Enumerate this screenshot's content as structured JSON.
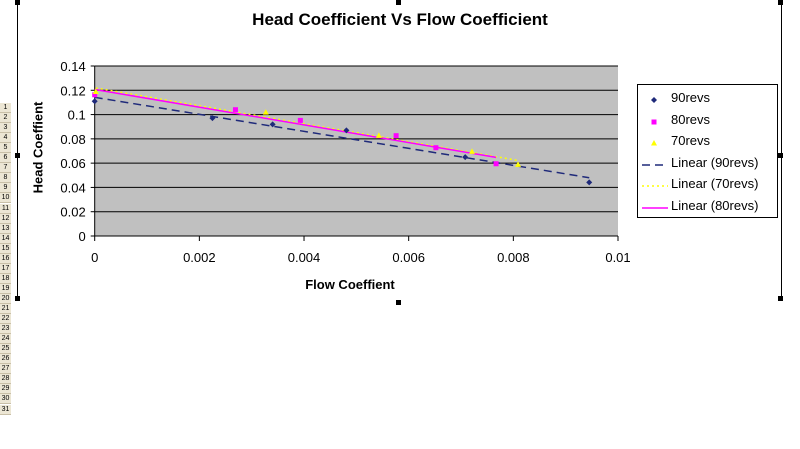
{
  "chart_data": {
    "type": "scatter",
    "title": "Head Coefficient Vs Flow Coefficient",
    "xlabel": "Flow Coeffient",
    "ylabel": "Head Coeffient",
    "xlim": [
      0,
      0.01
    ],
    "ylim": [
      0,
      0.14
    ],
    "xticks": [
      "0",
      "0.002",
      "0.004",
      "0.006",
      "0.008",
      "0.01"
    ],
    "yticks": [
      "0",
      "0.02",
      "0.04",
      "0.06",
      "0.08",
      "0.1",
      "0.12",
      "0.14"
    ],
    "grid": true,
    "legend_position": "right",
    "series": [
      {
        "name": "90revs",
        "color": "#1f2a7a",
        "marker": "diamond",
        "x": [
          0,
          0.00225,
          0.0034,
          0.00481,
          0.00708,
          0.00945
        ],
        "y": [
          0.111,
          0.0971,
          0.0919,
          0.087,
          0.065,
          0.0442
        ]
      },
      {
        "name": "80revs",
        "color": "#ff00ff",
        "marker": "square",
        "x": [
          0,
          0.00269,
          0.00393,
          0.00576,
          0.00652,
          0.00767
        ],
        "y": [
          0.1163,
          0.104,
          0.0952,
          0.0826,
          0.0727,
          0.0595
        ]
      },
      {
        "name": "70revs",
        "color": "#ffff00",
        "marker": "triangle",
        "x": [
          2e-05,
          0.00327,
          0.00543,
          0.00721,
          0.00809
        ],
        "y": [
          0.119,
          0.102,
          0.0829,
          0.0697,
          0.059
        ]
      }
    ],
    "trendlines": [
      {
        "name": "Linear (90revs)",
        "series": 0,
        "color": "#1f2a7a",
        "dash": "8,5"
      },
      {
        "name": "Linear (70revs)",
        "series": 2,
        "color": "#ffff00",
        "dash": "2,3"
      },
      {
        "name": "Linear (80revs)",
        "series": 1,
        "color": "#ff00ff",
        "dash": ""
      }
    ]
  },
  "rows": [
    "1",
    "2",
    "3",
    "4",
    "5",
    "6",
    "7",
    "8",
    "9",
    "10",
    "11",
    "12",
    "13",
    "14",
    "15",
    "16",
    "17",
    "18",
    "19",
    "20",
    "21",
    "22",
    "23",
    "24",
    "25",
    "26",
    "27",
    "28",
    "29",
    "30",
    "31"
  ]
}
